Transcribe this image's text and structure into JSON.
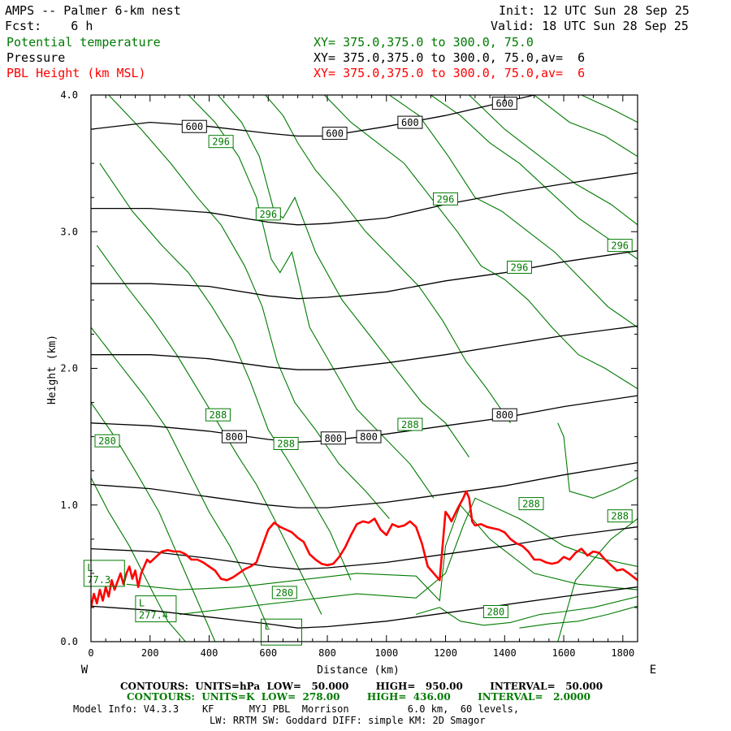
{
  "header": {
    "title": "AMPS -- Palmer 6-km nest",
    "fcst": "Fcst:    6 h",
    "init": "Init: 12 UTC Sun 28 Sep 25",
    "valid": "Valid: 18 UTC Sun 28 Sep 25",
    "fields": [
      {
        "name": "Potential temperature",
        "xy": "XY= 375.0,375.0 to 300.0, 75.0",
        "color": "#007a00"
      },
      {
        "name": "Pressure",
        "xy": "XY= 375.0,375.0 to 300.0, 75.0,av=  6",
        "color": "#000000"
      },
      {
        "name": "PBL Height (km MSL)",
        "xy": "XY= 375.0,375.0 to 300.0, 75.0,av=  6",
        "color": "#ff0000"
      }
    ]
  },
  "footer": {
    "pressure_contours": "CONTOURS:  UNITS=hPa  LOW=   50.000        HIGH=   950.00        INTERVAL=   50.000",
    "theta_contours": "CONTOURS:  UNITS=K  LOW=  278.00        HIGH=  436.00        INTERVAL=   2.0000",
    "model_info": "Model Info: V4.3.3    KF      MYJ PBL  Morrison          6.0 km,  60 levels,",
    "model_info2": "LW: RRTM SW: Goddard DIFF: simple KM: 2D Smagor"
  },
  "chart_data": {
    "type": "line",
    "title": "AMPS -- Palmer 6-km nest cross section",
    "xlabel": "Distance (km)",
    "ylabel": "Height (km)",
    "xlim": [
      0,
      1850
    ],
    "ylim": [
      0.0,
      4.0
    ],
    "xticks": [
      0,
      200,
      400,
      600,
      800,
      1000,
      1200,
      1400,
      1600,
      1800
    ],
    "xtick_labels": [
      "0",
      "200",
      "400",
      "600",
      "800",
      "1000",
      "1200",
      "1400",
      "1600",
      "1800"
    ],
    "yticks": [
      0.0,
      1.0,
      2.0,
      3.0,
      4.0
    ],
    "ytick_labels": [
      "0.0",
      "1.0",
      "2.0",
      "3.0",
      "4.0"
    ],
    "left_end_label": "W",
    "right_end_label": "E",
    "colors": {
      "pressure": "#000000",
      "theta": "#007a00",
      "pbl": "#ff0000"
    },
    "pressure_series": [
      {
        "level": "600",
        "x": [
          0,
          200,
          400,
          600,
          700,
          800,
          1000,
          1200,
          1400,
          1600,
          1850
        ],
        "y": [
          3.75,
          3.8,
          3.77,
          3.72,
          3.7,
          3.7,
          3.77,
          3.85,
          3.95,
          4.05,
          4.15
        ]
      },
      {
        "level": "650",
        "x": [
          0,
          200,
          400,
          600,
          700,
          800,
          1000,
          1200,
          1400,
          1600,
          1850
        ],
        "y": [
          3.17,
          3.17,
          3.14,
          3.07,
          3.05,
          3.06,
          3.1,
          3.2,
          3.28,
          3.35,
          3.43
        ]
      },
      {
        "level": "700",
        "x": [
          0,
          200,
          400,
          600,
          700,
          800,
          1000,
          1200,
          1400,
          1600,
          1850
        ],
        "y": [
          2.62,
          2.62,
          2.6,
          2.53,
          2.51,
          2.52,
          2.56,
          2.64,
          2.7,
          2.78,
          2.86
        ]
      },
      {
        "level": "750",
        "x": [
          0,
          200,
          400,
          600,
          700,
          800,
          1000,
          1200,
          1400,
          1600,
          1850
        ],
        "y": [
          2.1,
          2.1,
          2.07,
          2.01,
          1.99,
          1.99,
          2.04,
          2.1,
          2.17,
          2.24,
          2.31
        ]
      },
      {
        "level": "800",
        "x": [
          0,
          200,
          400,
          600,
          700,
          800,
          1000,
          1200,
          1400,
          1600,
          1850
        ],
        "y": [
          1.6,
          1.58,
          1.54,
          1.48,
          1.46,
          1.47,
          1.52,
          1.58,
          1.64,
          1.72,
          1.8
        ]
      },
      {
        "level": "850",
        "x": [
          0,
          200,
          400,
          600,
          700,
          800,
          1000,
          1200,
          1400,
          1600,
          1850
        ],
        "y": [
          1.15,
          1.12,
          1.06,
          1.0,
          0.98,
          0.98,
          1.02,
          1.08,
          1.14,
          1.22,
          1.31
        ]
      },
      {
        "level": "900",
        "x": [
          0,
          200,
          400,
          600,
          700,
          800,
          1000,
          1200,
          1400,
          1600,
          1850
        ],
        "y": [
          0.68,
          0.66,
          0.61,
          0.55,
          0.53,
          0.54,
          0.58,
          0.64,
          0.7,
          0.77,
          0.84
        ]
      },
      {
        "level": "950",
        "x": [
          0,
          200,
          400,
          600,
          700,
          800,
          1000,
          1200,
          1400,
          1600,
          1850
        ],
        "y": [
          0.26,
          0.23,
          0.18,
          0.13,
          0.1,
          0.11,
          0.15,
          0.21,
          0.27,
          0.33,
          0.4
        ]
      }
    ],
    "pressure_labels": [
      {
        "text": "600",
        "x": 350,
        "y": 3.77
      },
      {
        "text": "600",
        "x": 825,
        "y": 3.72
      },
      {
        "text": "600",
        "x": 1080,
        "y": 3.8
      },
      {
        "text": "600",
        "x": 1400,
        "y": 3.94
      },
      {
        "text": "800",
        "x": 485,
        "y": 1.5
      },
      {
        "text": "800",
        "x": 820,
        "y": 1.49
      },
      {
        "text": "800",
        "x": 940,
        "y": 1.5
      },
      {
        "text": "800",
        "x": 1400,
        "y": 1.66
      }
    ],
    "theta_series": [
      {
        "x": [
          0,
          60,
          130,
          200,
          260,
          320
        ],
        "y": [
          1.2,
          0.95,
          0.7,
          0.4,
          0.15,
          0.0
        ]
      },
      {
        "x": [
          0,
          80,
          150,
          230,
          300,
          370,
          420
        ],
        "y": [
          1.75,
          1.5,
          1.25,
          0.95,
          0.6,
          0.25,
          0.0
        ]
      },
      {
        "x": [
          0,
          90,
          180,
          260,
          330,
          400,
          470,
          540,
          600
        ],
        "y": [
          2.3,
          2.05,
          1.8,
          1.55,
          1.25,
          0.95,
          0.7,
          0.4,
          0.1
        ]
      },
      {
        "x": [
          20,
          120,
          210,
          290,
          360,
          430,
          500,
          560,
          620,
          700,
          780
        ],
        "y": [
          2.9,
          2.6,
          2.35,
          2.1,
          1.85,
          1.6,
          1.35,
          1.15,
          0.9,
          0.55,
          0.2
        ]
      },
      {
        "x": [
          30,
          140,
          240,
          330,
          410,
          480,
          540,
          600,
          660,
          730,
          810,
          880
        ],
        "y": [
          3.5,
          3.15,
          2.9,
          2.7,
          2.45,
          2.2,
          1.9,
          1.55,
          1.35,
          1.1,
          0.8,
          0.45
        ]
      },
      {
        "x": [
          60,
          170,
          270,
          360,
          440,
          520,
          580,
          630,
          690,
          760,
          840,
          930,
          1010
        ],
        "y": [
          4.0,
          3.75,
          3.5,
          3.25,
          3.05,
          2.75,
          2.45,
          2.05,
          1.75,
          1.55,
          1.3,
          1.1,
          0.9
        ]
      },
      {
        "x": [
          330,
          420,
          500,
          560,
          610,
          640,
          680,
          740,
          820,
          900,
          990,
          1080,
          1160
        ],
        "y": [
          4.0,
          3.8,
          3.55,
          3.25,
          2.8,
          2.7,
          2.85,
          2.3,
          2.0,
          1.7,
          1.5,
          1.3,
          1.05
        ]
      },
      {
        "x": [
          430,
          510,
          570,
          620,
          650,
          690,
          760,
          850,
          940,
          1030,
          1120,
          1200,
          1280
        ],
        "y": [
          4.0,
          3.8,
          3.55,
          3.15,
          3.1,
          3.25,
          2.85,
          2.5,
          2.25,
          2.0,
          1.75,
          1.6,
          1.35
        ]
      },
      {
        "x": [
          590,
          650,
          700,
          760,
          840,
          930,
          1020,
          1110,
          1190,
          1270,
          1340,
          1420
        ],
        "y": [
          4.0,
          3.85,
          3.65,
          3.45,
          3.25,
          3.0,
          2.8,
          2.6,
          2.35,
          2.05,
          1.85,
          1.6
        ]
      },
      {
        "x": [
          790,
          880,
          970,
          1060,
          1150,
          1240,
          1320,
          1400,
          1480,
          1560,
          1650,
          1740,
          1850
        ],
        "y": [
          4.0,
          3.8,
          3.65,
          3.5,
          3.25,
          3.0,
          2.75,
          2.65,
          2.5,
          2.3,
          2.1,
          2.0,
          1.85
        ]
      },
      {
        "x": [
          1010,
          1110,
          1210,
          1300,
          1390,
          1480,
          1570,
          1660,
          1750,
          1850
        ],
        "y": [
          4.0,
          3.85,
          3.55,
          3.25,
          3.15,
          3.0,
          2.85,
          2.65,
          2.45,
          2.3
        ]
      },
      {
        "x": [
          1150,
          1250,
          1350,
          1450,
          1550,
          1650,
          1750,
          1850
        ],
        "y": [
          4.0,
          3.85,
          3.65,
          3.5,
          3.3,
          3.1,
          2.95,
          2.8
        ]
      },
      {
        "x": [
          1280,
          1400,
          1520,
          1640,
          1760,
          1850
        ],
        "y": [
          4.0,
          3.75,
          3.55,
          3.35,
          3.2,
          3.05
        ]
      },
      {
        "x": [
          1500,
          1620,
          1740,
          1850
        ],
        "y": [
          4.0,
          3.8,
          3.7,
          3.55
        ]
      },
      {
        "x": [
          1660,
          1760,
          1850
        ],
        "y": [
          4.0,
          3.9,
          3.8
        ]
      },
      {
        "x": [
          120,
          300,
          500,
          700,
          900,
          1100,
          1180,
          1200,
          1250,
          1350,
          1500,
          1650,
          1850
        ],
        "y": [
          0.42,
          0.38,
          0.4,
          0.45,
          0.5,
          0.48,
          0.3,
          0.7,
          1.0,
          0.75,
          0.5,
          0.42,
          0.38
        ]
      },
      {
        "x": [
          300,
          500,
          700,
          900,
          1100,
          1200,
          1260,
          1300,
          1450,
          1600,
          1700,
          1850
        ],
        "y": [
          0.2,
          0.25,
          0.3,
          0.35,
          0.32,
          0.5,
          0.85,
          1.05,
          0.9,
          0.7,
          0.62,
          0.55
        ]
      },
      {
        "x": [
          1100,
          1180,
          1250,
          1330,
          1420,
          1520,
          1600,
          1700,
          1850
        ],
        "y": [
          0.2,
          0.25,
          0.15,
          0.12,
          0.14,
          0.2,
          0.22,
          0.25,
          0.33
        ]
      },
      {
        "x": [
          1450,
          1550,
          1650,
          1750,
          1850
        ],
        "y": [
          0.1,
          0.13,
          0.15,
          0.2,
          0.26
        ]
      },
      {
        "x": [
          1580,
          1620,
          1640,
          1680,
          1720,
          1760,
          1850
        ],
        "y": [
          0.0,
          0.3,
          0.45,
          0.55,
          0.65,
          0.75,
          0.9
        ]
      },
      {
        "x": [
          1580,
          1600,
          1620,
          1700,
          1780,
          1850
        ],
        "y": [
          1.6,
          1.5,
          1.1,
          1.05,
          1.12,
          1.2
        ]
      }
    ],
    "theta_labels": [
      {
        "text": "296",
        "x": 440,
        "y": 3.66
      },
      {
        "text": "296",
        "x": 600,
        "y": 3.13
      },
      {
        "text": "296",
        "x": 1200,
        "y": 3.24
      },
      {
        "text": "296",
        "x": 1450,
        "y": 2.74
      },
      {
        "text": "296",
        "x": 1790,
        "y": 2.9
      },
      {
        "text": "288",
        "x": 430,
        "y": 1.66
      },
      {
        "text": "288",
        "x": 660,
        "y": 1.45
      },
      {
        "text": "288",
        "x": 1080,
        "y": 1.59
      },
      {
        "text": "288",
        "x": 1490,
        "y": 1.01
      },
      {
        "text": "288",
        "x": 1790,
        "y": 0.92
      },
      {
        "text": "280",
        "x": 55,
        "y": 1.47
      },
      {
        "text": "280",
        "x": 655,
        "y": 0.36
      },
      {
        "text": "280",
        "x": 1370,
        "y": 0.22
      }
    ],
    "lows": [
      {
        "label": "L",
        "value": "77.3",
        "x": 20,
        "y": 0.5
      },
      {
        "label": "L",
        "value": "277.4",
        "x": 195,
        "y": 0.24
      },
      {
        "label": "L",
        "value": "",
        "x": 620,
        "y": 0.07
      }
    ],
    "pbl": {
      "x": [
        0,
        10,
        20,
        30,
        40,
        50,
        60,
        70,
        80,
        90,
        100,
        110,
        120,
        130,
        140,
        150,
        160,
        170,
        180,
        190,
        200,
        220,
        240,
        260,
        280,
        300,
        320,
        340,
        360,
        380,
        400,
        420,
        440,
        460,
        480,
        500,
        520,
        540,
        560,
        580,
        600,
        620,
        640,
        660,
        680,
        700,
        720,
        740,
        760,
        780,
        800,
        820,
        840,
        860,
        880,
        900,
        920,
        940,
        960,
        980,
        1000,
        1020,
        1040,
        1060,
        1080,
        1100,
        1120,
        1140,
        1160,
        1180,
        1190,
        1200,
        1210,
        1220,
        1240,
        1260,
        1270,
        1280,
        1290,
        1300,
        1320,
        1340,
        1360,
        1380,
        1400,
        1420,
        1440,
        1460,
        1480,
        1500,
        1520,
        1540,
        1560,
        1580,
        1600,
        1620,
        1640,
        1660,
        1680,
        1700,
        1720,
        1740,
        1760,
        1780,
        1800,
        1820,
        1850
      ],
      "y": [
        0.25,
        0.35,
        0.28,
        0.38,
        0.3,
        0.4,
        0.33,
        0.45,
        0.38,
        0.44,
        0.5,
        0.42,
        0.5,
        0.55,
        0.46,
        0.52,
        0.4,
        0.5,
        0.55,
        0.6,
        0.58,
        0.62,
        0.66,
        0.67,
        0.66,
        0.66,
        0.64,
        0.6,
        0.6,
        0.58,
        0.55,
        0.52,
        0.46,
        0.45,
        0.47,
        0.5,
        0.53,
        0.55,
        0.58,
        0.7,
        0.82,
        0.87,
        0.84,
        0.82,
        0.8,
        0.76,
        0.73,
        0.64,
        0.6,
        0.57,
        0.56,
        0.57,
        0.62,
        0.69,
        0.78,
        0.86,
        0.88,
        0.87,
        0.9,
        0.82,
        0.78,
        0.86,
        0.84,
        0.85,
        0.88,
        0.84,
        0.72,
        0.55,
        0.5,
        0.45,
        0.7,
        0.95,
        0.92,
        0.88,
        0.97,
        1.05,
        1.1,
        1.05,
        0.88,
        0.85,
        0.86,
        0.84,
        0.83,
        0.82,
        0.8,
        0.75,
        0.72,
        0.7,
        0.66,
        0.6,
        0.6,
        0.58,
        0.57,
        0.58,
        0.62,
        0.6,
        0.65,
        0.68,
        0.63,
        0.66,
        0.65,
        0.6,
        0.56,
        0.52,
        0.53,
        0.5,
        0.45
      ]
    }
  }
}
